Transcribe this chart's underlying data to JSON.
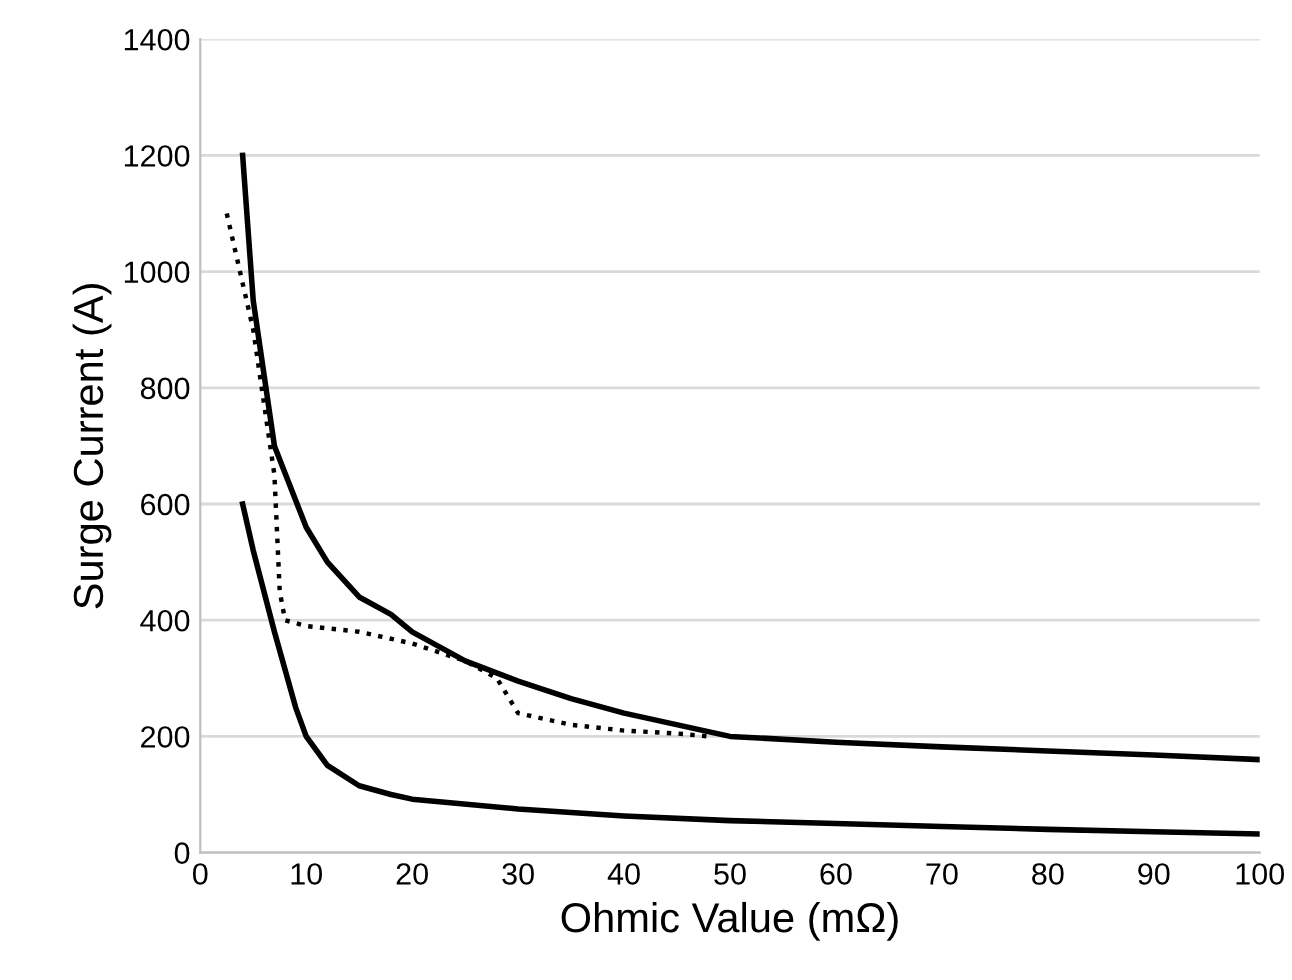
{
  "chart_data": {
    "type": "line",
    "xlabel": "Ohmic Value (mΩ)",
    "ylabel": "Surge Current (A)",
    "xlim": [
      0,
      100
    ],
    "xticks": [
      0,
      10,
      20,
      30,
      40,
      50,
      60,
      70,
      80,
      90,
      100
    ],
    "ylim": [
      0,
      1400
    ],
    "yticks": [
      0,
      200,
      400,
      600,
      800,
      1000,
      1200,
      1400
    ],
    "grid": "y",
    "legend": false,
    "marker": "none",
    "series": [
      {
        "color": "#000000",
        "line_style": "solid",
        "x": [
          4,
          5,
          7,
          10,
          12,
          15,
          18,
          20,
          25,
          30,
          35,
          40,
          50,
          60,
          70,
          80,
          90,
          100
        ],
        "values": [
          1200,
          950,
          700,
          560,
          500,
          440,
          410,
          380,
          330,
          295,
          265,
          240,
          200,
          190,
          182,
          175,
          168,
          160
        ]
      },
      {
        "color": "#000000",
        "line_style": "dotted",
        "x": [
          2.5,
          5,
          7,
          7.5,
          8,
          10,
          15,
          20,
          25,
          28,
          30,
          35,
          40,
          45,
          48
        ],
        "values": [
          1100,
          900,
          650,
          450,
          400,
          390,
          380,
          360,
          330,
          300,
          240,
          220,
          210,
          205,
          200
        ]
      },
      {
        "color": "#000000",
        "line_style": "solid",
        "x": [
          4,
          5,
          7,
          9,
          10,
          12,
          15,
          18,
          20,
          30,
          40,
          50,
          60,
          70,
          80,
          90,
          100
        ],
        "values": [
          600,
          520,
          380,
          250,
          200,
          150,
          115,
          100,
          92,
          75,
          63,
          55,
          50,
          45,
          40,
          36,
          32
        ]
      }
    ]
  }
}
